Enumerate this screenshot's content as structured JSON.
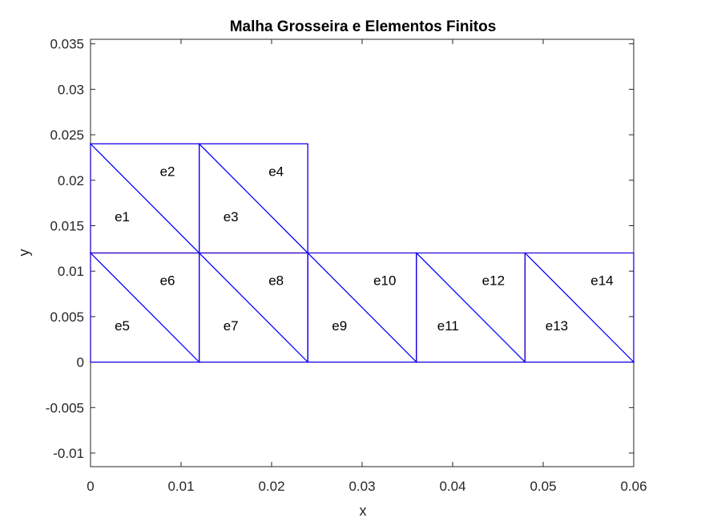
{
  "chart_data": {
    "type": "mesh",
    "title": "Malha Grosseira e Elementos Finitos",
    "xlabel": "x",
    "ylabel": "y",
    "xlim": [
      0,
      0.06
    ],
    "ylim": [
      -0.0115,
      0.0355
    ],
    "xticks": [
      0,
      0.01,
      0.02,
      0.03,
      0.04,
      0.05,
      0.06
    ],
    "xtick_labels": [
      "0",
      "0.01",
      "0.02",
      "0.03",
      "0.04",
      "0.05",
      "0.06"
    ],
    "yticks": [
      -0.01,
      -0.005,
      0,
      0.005,
      0.01,
      0.015,
      0.02,
      0.025,
      0.03,
      0.035
    ],
    "ytick_labels": [
      "-0.01",
      "-0.005",
      "0",
      "0.005",
      "0.01",
      "0.015",
      "0.02",
      "0.025",
      "0.03",
      "0.035"
    ],
    "grid": false,
    "colors": {
      "coarse_mesh": "#ff0000",
      "elements": "#0000ff",
      "axes": "#262626"
    },
    "coarse_cells": [
      {
        "x": [
          0,
          0.012
        ],
        "y": [
          0,
          0.012
        ]
      },
      {
        "x": [
          0.012,
          0.024
        ],
        "y": [
          0,
          0.012
        ]
      },
      {
        "x": [
          0.024,
          0.036
        ],
        "y": [
          0,
          0.012
        ]
      },
      {
        "x": [
          0.036,
          0.048
        ],
        "y": [
          0,
          0.012
        ]
      },
      {
        "x": [
          0.048,
          0.06
        ],
        "y": [
          0,
          0.012
        ]
      },
      {
        "x": [
          0,
          0.012
        ],
        "y": [
          0.012,
          0.024
        ]
      },
      {
        "x": [
          0.012,
          0.024
        ],
        "y": [
          0.012,
          0.024
        ]
      }
    ],
    "elements": [
      {
        "label": "e1",
        "nodes": [
          [
            0,
            0.012
          ],
          [
            0.012,
            0.012
          ],
          [
            0,
            0.024
          ]
        ],
        "label_pos": [
          0.0035,
          0.016
        ]
      },
      {
        "label": "e2",
        "nodes": [
          [
            0.012,
            0.012
          ],
          [
            0.012,
            0.024
          ],
          [
            0,
            0.024
          ]
        ],
        "label_pos": [
          0.0085,
          0.021
        ]
      },
      {
        "label": "e3",
        "nodes": [
          [
            0.012,
            0.012
          ],
          [
            0.024,
            0.012
          ],
          [
            0.012,
            0.024
          ]
        ],
        "label_pos": [
          0.0155,
          0.016
        ]
      },
      {
        "label": "e4",
        "nodes": [
          [
            0.024,
            0.012
          ],
          [
            0.024,
            0.024
          ],
          [
            0.012,
            0.024
          ]
        ],
        "label_pos": [
          0.0205,
          0.021
        ]
      },
      {
        "label": "e5",
        "nodes": [
          [
            0,
            0
          ],
          [
            0.012,
            0
          ],
          [
            0,
            0.012
          ]
        ],
        "label_pos": [
          0.0035,
          0.004
        ]
      },
      {
        "label": "e6",
        "nodes": [
          [
            0.012,
            0
          ],
          [
            0.012,
            0.012
          ],
          [
            0,
            0.012
          ]
        ],
        "label_pos": [
          0.0085,
          0.009
        ]
      },
      {
        "label": "e7",
        "nodes": [
          [
            0.012,
            0
          ],
          [
            0.024,
            0
          ],
          [
            0.012,
            0.012
          ]
        ],
        "label_pos": [
          0.0155,
          0.004
        ]
      },
      {
        "label": "e8",
        "nodes": [
          [
            0.024,
            0
          ],
          [
            0.024,
            0.012
          ],
          [
            0.012,
            0.012
          ]
        ],
        "label_pos": [
          0.0205,
          0.009
        ]
      },
      {
        "label": "e9",
        "nodes": [
          [
            0.024,
            0
          ],
          [
            0.036,
            0
          ],
          [
            0.024,
            0.012
          ]
        ],
        "label_pos": [
          0.0275,
          0.004
        ]
      },
      {
        "label": "e10",
        "nodes": [
          [
            0.036,
            0
          ],
          [
            0.036,
            0.012
          ],
          [
            0.024,
            0.012
          ]
        ],
        "label_pos": [
          0.0325,
          0.009
        ]
      },
      {
        "label": "e11",
        "nodes": [
          [
            0.036,
            0
          ],
          [
            0.048,
            0
          ],
          [
            0.036,
            0.012
          ]
        ],
        "label_pos": [
          0.0395,
          0.004
        ]
      },
      {
        "label": "e12",
        "nodes": [
          [
            0.048,
            0
          ],
          [
            0.048,
            0.012
          ],
          [
            0.036,
            0.012
          ]
        ],
        "label_pos": [
          0.0445,
          0.009
        ]
      },
      {
        "label": "e13",
        "nodes": [
          [
            0.048,
            0
          ],
          [
            0.06,
            0
          ],
          [
            0.048,
            0.012
          ]
        ],
        "label_pos": [
          0.0515,
          0.004
        ]
      },
      {
        "label": "e14",
        "nodes": [
          [
            0.06,
            0
          ],
          [
            0.06,
            0.012
          ],
          [
            0.048,
            0.012
          ]
        ],
        "label_pos": [
          0.0565,
          0.009
        ]
      }
    ]
  }
}
